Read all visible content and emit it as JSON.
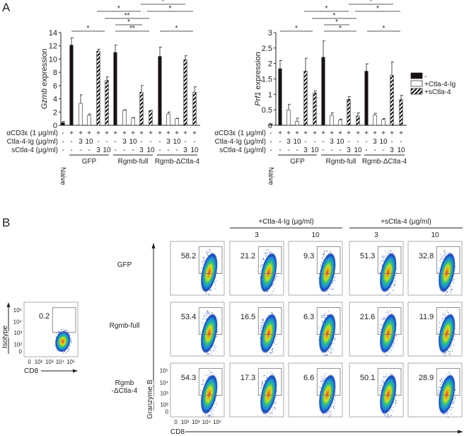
{
  "panel_a_label": "A",
  "panel_b_label": "B",
  "chart_data": [
    {
      "type": "bar",
      "ylabel_italic": "Gzmb",
      "ylabel_rest": " expression",
      "ylim": [
        0,
        14
      ],
      "yticks": [
        "0",
        "2",
        "4",
        "6",
        "8",
        "10",
        "12",
        "14"
      ],
      "naive": {
        "label": "Naive",
        "value": 0.4,
        "error": 0.2
      },
      "groups": [
        {
          "label": "GFP",
          "values": [
            12.1,
            3.3,
            1.5,
            11.2,
            6.8
          ],
          "errors": [
            1.1,
            1.3,
            0.2,
            0.3,
            0.5
          ]
        },
        {
          "label": "Rgmb-full",
          "values": [
            11.0,
            2.3,
            1.1,
            5.0,
            2.2
          ],
          "errors": [
            1.1,
            0.05,
            0.05,
            1.0,
            0.05
          ]
        },
        {
          "label": "Rgmb-ΔCtla-4",
          "values": [
            10.4,
            1.7,
            1.0,
            9.9,
            5.0
          ],
          "errors": [
            1.4,
            0.3,
            0.05,
            0.6,
            0.8
          ]
        }
      ],
      "significance": [
        "*",
        "**",
        "*",
        "**",
        "*",
        "*",
        "*",
        "*"
      ]
    },
    {
      "type": "bar",
      "ylabel_italic": "Prf1",
      "ylabel_rest": " expression",
      "ylim": [
        0,
        3
      ],
      "yticks": [
        "0",
        "0.5",
        "1",
        "1.5",
        "2",
        "2.5",
        "3"
      ],
      "naive": {
        "label": "Naive",
        "value": 0.02,
        "error": 0.01
      },
      "groups": [
        {
          "label": "GFP",
          "values": [
            1.83,
            0.5,
            0.13,
            1.75,
            1.05
          ],
          "errors": [
            0.27,
            0.18,
            0.1,
            0.42,
            0.07
          ]
        },
        {
          "label": "Rgmb-full",
          "values": [
            2.2,
            0.32,
            0.17,
            0.84,
            0.3
          ],
          "errors": [
            0.53,
            0.08,
            0.03,
            0.09,
            0.1
          ]
        },
        {
          "label": "Rgmb-ΔCtla-4",
          "values": [
            1.75,
            0.33,
            0.19,
            1.62,
            0.83
          ],
          "errors": [
            0.24,
            0.06,
            0.03,
            0.43,
            0.14
          ]
        }
      ],
      "significance": [
        "*",
        "*",
        "*",
        "*",
        "*",
        "*",
        "*",
        "*"
      ]
    }
  ],
  "treatment_rows": [
    {
      "label": "αCD3ε (1 μg/ml)",
      "marks": [
        "-",
        "+",
        "+",
        "+",
        "+",
        "+",
        "+",
        "+",
        "+",
        "+",
        "+",
        "+",
        "+",
        "+",
        "+",
        "+"
      ]
    },
    {
      "label": "Ctla-4-Ig (μg/ml)",
      "marks": [
        "-",
        "-",
        "3",
        "10",
        "-",
        "-",
        "-",
        "3",
        "10",
        "-",
        "-",
        "-",
        "3",
        "10",
        "-",
        "-"
      ]
    },
    {
      "label": "sCtla-4 (μg/ml)",
      "marks": [
        "-",
        "-",
        "-",
        "-",
        "3",
        "10",
        "-",
        "-",
        "-",
        "3",
        "10",
        "-",
        "-",
        "-",
        "3",
        "10"
      ]
    }
  ],
  "legend": [
    {
      "label": "-",
      "fill": "#1a1111"
    },
    {
      "label": "+Ctla-4-Ig",
      "fill": "#ffffff"
    },
    {
      "label": "+sCtla-4",
      "fill": "hatched"
    }
  ],
  "flow": {
    "isotype": {
      "ylabel": "Isotype",
      "xlabel": "CD8",
      "value": "0.2"
    },
    "axis_ticks": [
      "0",
      "10²",
      "10³",
      "10⁴",
      "10⁵"
    ],
    "ylabel": "Granzyme B",
    "xlabel": "CD8",
    "column_groups": [
      {
        "label": "+Ctla-4-Ig (μg/ml)",
        "doses": [
          "3",
          "10"
        ]
      },
      {
        "label": "+sCtla-4 (μg/ml)",
        "doses": [
          "3",
          "10"
        ]
      }
    ],
    "rows": [
      {
        "label": "GFP",
        "values": [
          "58.2",
          "21.2",
          "9.3",
          "51.3",
          "32.8"
        ]
      },
      {
        "label": "Rgmb-full",
        "values": [
          "53.4",
          "16.5",
          "6.3",
          "21.6",
          "11.9"
        ]
      },
      {
        "label": "Rgmb\n-ΔCtla-4",
        "values": [
          "54.3",
          "17.3",
          "6.6",
          "50.1",
          "28.9"
        ]
      }
    ]
  }
}
